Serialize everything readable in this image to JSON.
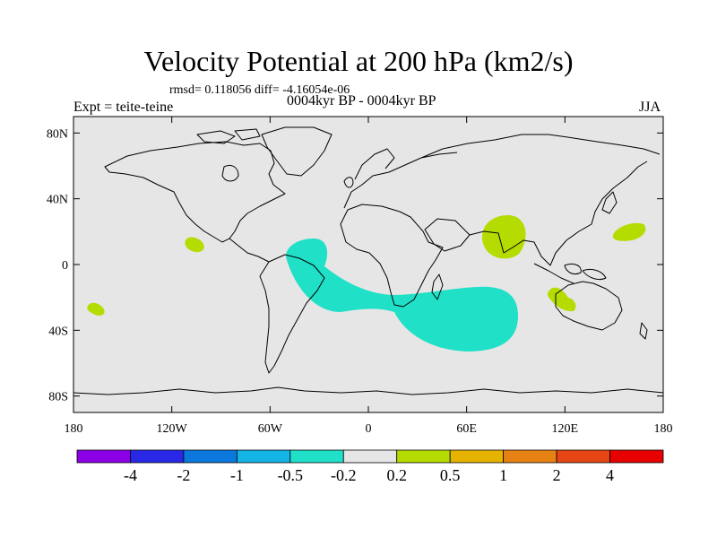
{
  "title": "Velocity Potential at 200 hPa (km2/s)",
  "stats_line": "rmsd= 0.118056 diff= -4.16054e-06",
  "experiment": "Expt = teite-teine",
  "subtitle": "0004kyr BP - 0004kyr BP",
  "season": "JJA",
  "map": {
    "projection": "cylindrical-equidistant",
    "lon_range": [
      -180,
      180
    ],
    "lat_range": [
      -90,
      90
    ],
    "ocean_color": "#e6e6e6",
    "coast_color": "#000000",
    "lon_ticks": [
      {
        "value": -180,
        "label": "180"
      },
      {
        "value": -120,
        "label": "120W"
      },
      {
        "value": -60,
        "label": "60W"
      },
      {
        "value": 0,
        "label": "0"
      },
      {
        "value": 60,
        "label": "60E"
      },
      {
        "value": 120,
        "label": "120E"
      },
      {
        "value": 180,
        "label": "180"
      }
    ],
    "lat_ticks": [
      {
        "value": 80,
        "label": "80N"
      },
      {
        "value": 40,
        "label": "40N"
      },
      {
        "value": 0,
        "label": "0"
      },
      {
        "value": -40,
        "label": "40S"
      },
      {
        "value": -80,
        "label": "80S"
      }
    ],
    "anomaly_regions": [
      {
        "name": "south-atlantic-indian-negative",
        "level": "-0.5 to -0.2",
        "color": "#20e0c8"
      },
      {
        "name": "india-positive",
        "level": "0.2 to 0.5",
        "color": "#b4dc00"
      },
      {
        "name": "north-pacific-positive",
        "level": "0.2 to 0.5",
        "color": "#b4dc00"
      },
      {
        "name": "east-pacific-positive",
        "level": "0.2 to 0.5",
        "color": "#b4dc00"
      },
      {
        "name": "south-pacific-positive",
        "level": "0.2 to 0.5",
        "color": "#b4dc00"
      },
      {
        "name": "west-australia-positive",
        "level": "0.2 to 0.5",
        "color": "#b4dc00"
      }
    ]
  },
  "colorbar": {
    "colors": [
      "#8c00e6",
      "#2828e6",
      "#0a78dc",
      "#14b4e6",
      "#20e0c8",
      "#e6e6e6",
      "#b4dc00",
      "#e6b400",
      "#e68214",
      "#e64614",
      "#e60000"
    ],
    "labels": [
      "-4",
      "-2",
      "-1",
      "-0.5",
      "-0.2",
      "0.2",
      "0.5",
      "1",
      "2",
      "4"
    ]
  }
}
